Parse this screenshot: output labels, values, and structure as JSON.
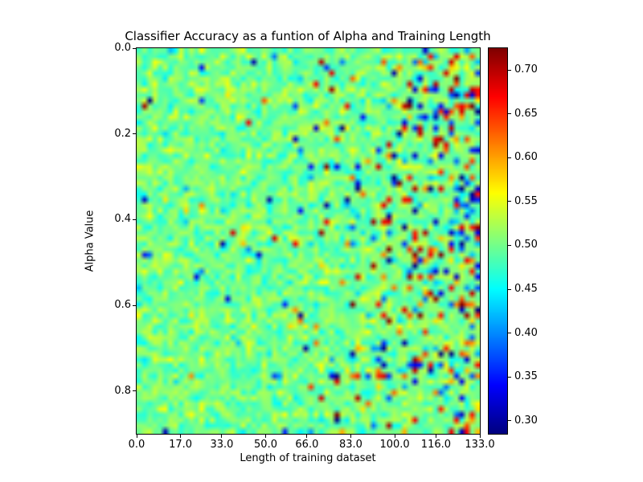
{
  "title": "Classifier Accuracy as a funtion of Alpha and Training Length",
  "chart_data": {
    "type": "heatmap",
    "title": "Classifier Accuracy as a funtion of Alpha and Training Length",
    "xlabel": "Length of training dataset",
    "ylabel": "Alpha Value",
    "xlim": [
      0.0,
      133.0
    ],
    "ylim_top_to_bottom": [
      0.0,
      0.9
    ],
    "x_tick_values": [
      0.0,
      17.0,
      33.0,
      50.0,
      66.0,
      83.0,
      100.0,
      116.0,
      133.0
    ],
    "x_tick_labels": [
      "0.0",
      "17.0",
      "33.0",
      "50.0",
      "66.0",
      "83.0",
      "100.0",
      "116.0",
      "133.0"
    ],
    "y_tick_values": [
      0.0,
      0.2,
      0.4,
      0.6,
      0.8
    ],
    "y_tick_labels": [
      "0.0",
      "0.2",
      "0.4",
      "0.6",
      "0.8"
    ],
    "grid": false,
    "legend": "none",
    "colorbar": {
      "position": "right",
      "colormap": "jet",
      "vmin": 0.285,
      "vmax": 0.725,
      "tick_values": [
        0.7,
        0.65,
        0.6,
        0.55,
        0.5,
        0.45,
        0.4,
        0.35,
        0.3
      ],
      "tick_labels": [
        "0.70",
        "0.65",
        "0.60",
        "0.55",
        "0.50",
        "0.45",
        "0.40",
        "0.35",
        "0.30"
      ]
    },
    "values_summary": {
      "description": "Noisy classifier-accuracy field centered near 0.5 (green/cyan). Variance is low at small training lengths and grows toward the right edge, where saturated red (~0.65-0.72) and dark blue (~0.29-0.35) outlier cells cluster near x = 100-133.",
      "mean": 0.5,
      "approx_min": 0.29,
      "approx_max": 0.72
    },
    "synthesis": {
      "grid_cols": 66,
      "grid_rows": 70,
      "seed": 42,
      "base": 0.5,
      "base_std": 0.024,
      "outlier_base_prob": 0.015,
      "outlier_slope": 0.32,
      "outlier_power": 3.5,
      "outlier_mag_min": 0.08,
      "outlier_mag_max": 0.22
    }
  }
}
